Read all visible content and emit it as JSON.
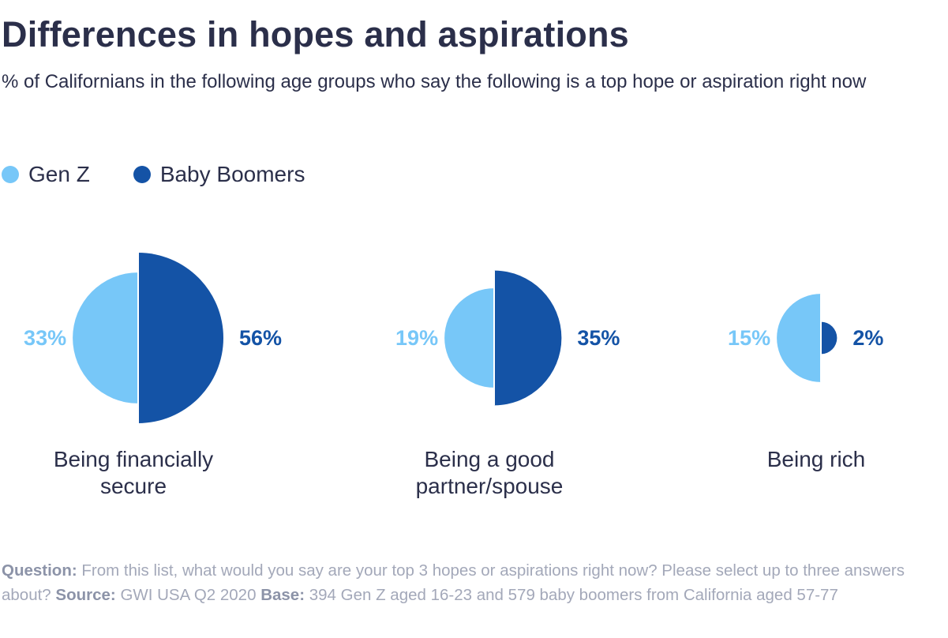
{
  "title": "Differences in hopes and aspirations",
  "subtitle": "% of Californians in the following age groups who say the following is a top hope or aspiration right now",
  "colors": {
    "gen_z": "#77c7f8",
    "baby_boomers": "#1453a6",
    "text": "#2b2f4a",
    "muted": "#a3a8b9"
  },
  "legend": [
    {
      "name": "Gen Z",
      "color": "#77c7f8"
    },
    {
      "name": "Baby Boomers",
      "color": "#1453a6"
    }
  ],
  "chart_data": {
    "type": "half-circle area comparison",
    "categories": [
      "Being financially secure",
      "Being a good partner/spouse",
      "Being rich"
    ],
    "category_lines": [
      [
        "Being financially",
        "secure"
      ],
      [
        "Being a good",
        "partner/spouse"
      ],
      [
        "Being rich"
      ]
    ],
    "series": [
      {
        "name": "Gen Z",
        "values": [
          33,
          19,
          15
        ],
        "labels": [
          "33%",
          "19%",
          "15%"
        ],
        "color": "#77c7f8"
      },
      {
        "name": "Baby Boomers",
        "values": [
          56,
          35,
          2
        ],
        "labels": [
          "56%",
          "35%",
          "2%"
        ],
        "color": "#1453a6"
      }
    ],
    "unit": "%"
  },
  "footer": {
    "question_label": "Question:",
    "question": "From this list, what would you say are your top 3 hopes or aspirations right now? Please select up to three answers  about?",
    "source_label": "Source:",
    "source": "GWI USA Q2 2020",
    "base_label": "Base:",
    "base": "394 Gen Z aged 16-23 and 579 baby boomers from California aged 57-77"
  }
}
